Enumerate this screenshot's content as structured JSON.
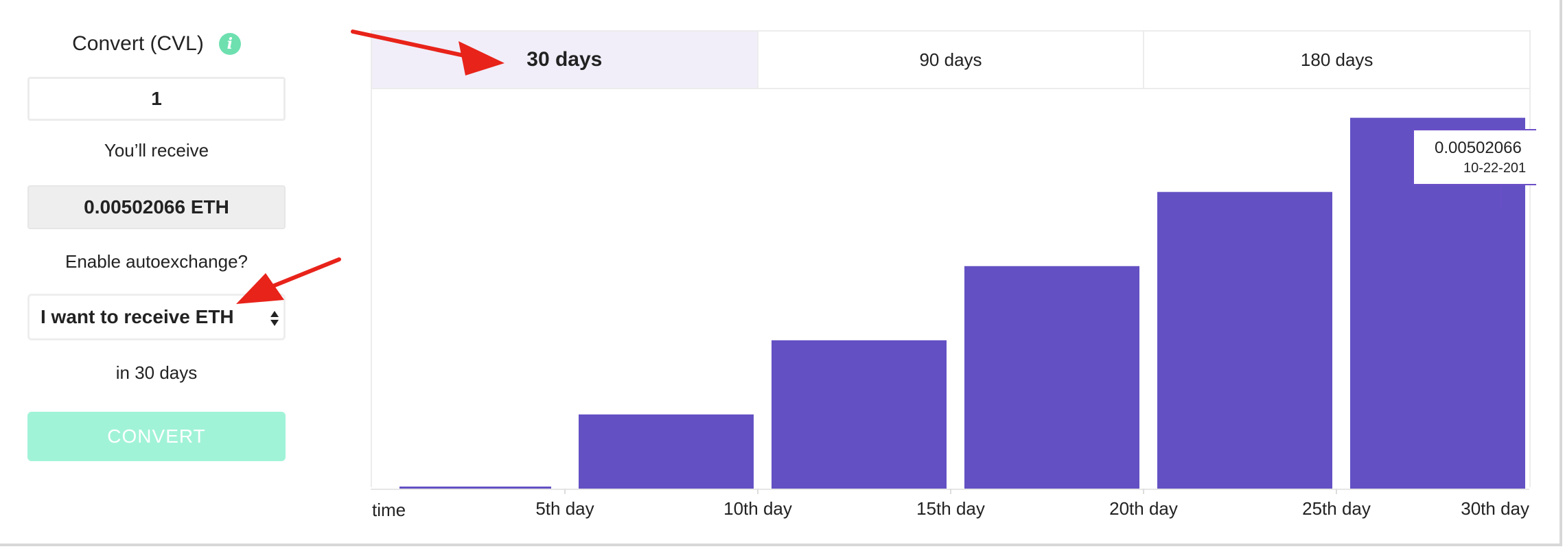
{
  "converter": {
    "title": "Convert (CVL)",
    "info_icon": "info-icon",
    "amount_value": "1",
    "receive_label": "You’ll receive",
    "receive_value": "0.00502066 ETH",
    "autoexchange_label": "Enable autoexchange?",
    "select_value": "I want to receive ETH",
    "days_label": "in 30 days",
    "convert_label": "CONVERT"
  },
  "tabs": [
    {
      "label": "30 days",
      "active": true
    },
    {
      "label": "90 days",
      "active": false
    },
    {
      "label": "180 days",
      "active": false
    }
  ],
  "tooltip": {
    "value": "0.00502066",
    "date": "10-22-201"
  },
  "colors": {
    "bar": "#6351c4",
    "accent": "#6ee0b0",
    "convert_disabled": "#a1f3d8",
    "annotation_arrow": "#e8231a"
  },
  "chart_data": {
    "type": "bar",
    "categories": [
      "0-5",
      "5-10",
      "10-15",
      "15-20",
      "20-25",
      "25-30"
    ],
    "values": [
      0.02,
      1,
      2,
      3,
      4,
      5
    ],
    "ylim": [
      0,
      5.2
    ],
    "x_ticks": [
      "time",
      "5th day",
      "10th day",
      "15th day",
      "20th day",
      "25th day",
      "30th day"
    ],
    "grid": false
  }
}
